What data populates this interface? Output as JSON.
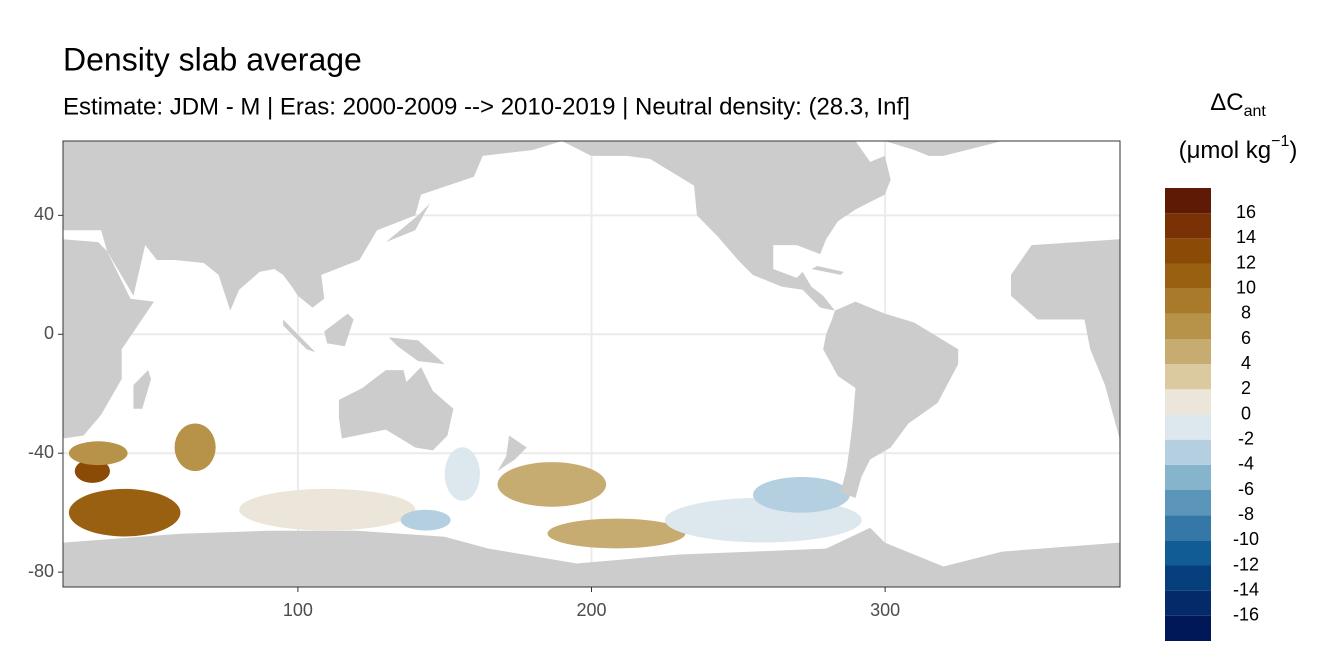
{
  "chart_data": {
    "type": "map",
    "title": "Density slab average",
    "subtitle": "Estimate: JDM - M | Eras: 2000-2009 --> 2010-2019 | Neutral density: (28.3, Inf]",
    "legend_title": {
      "main": "ΔC",
      "sub": "ant",
      "unit": "(μmol kg",
      "unit_sup": "−1",
      "unit_end": ")"
    },
    "xlim": [
      20,
      380
    ],
    "xticks": [
      100,
      200,
      300
    ],
    "ylim": [
      -85,
      65
    ],
    "yticks": [
      -80,
      -40,
      0,
      40
    ],
    "grid": true,
    "land_color": "#cccccc",
    "legend": {
      "limits": [
        -18,
        18
      ],
      "breaks": [
        -16,
        -14,
        -12,
        -10,
        -8,
        -6,
        -4,
        -2,
        0,
        2,
        4,
        6,
        8,
        10,
        12,
        14,
        16
      ],
      "colors": [
        "#011858",
        "#042a6a",
        "#063f7c",
        "#115c94",
        "#3578a7",
        "#5b96ba",
        "#87b4cd",
        "#b3cfe0",
        "#dde8ee",
        "#ece6da",
        "#dbc9a0",
        "#c7ac72",
        "#b79349",
        "#a97a2a",
        "#9a6012",
        "#8c4a07",
        "#7a3105",
        "#5e1a04"
      ]
    },
    "regions": [
      {
        "lon": [
          22,
          60
        ],
        "lat": [
          -52,
          -68
        ],
        "value": 10
      },
      {
        "lon": [
          24,
          36
        ],
        "lat": [
          -42,
          -50
        ],
        "value": 12
      },
      {
        "lon": [
          22,
          42
        ],
        "lat": [
          -36,
          -44
        ],
        "value": 6
      },
      {
        "lon": [
          58,
          72
        ],
        "lat": [
          -30,
          -46
        ],
        "value": 6
      },
      {
        "lon": [
          80,
          140
        ],
        "lat": [
          -52,
          -66
        ],
        "value": 1
      },
      {
        "lon": [
          135,
          152
        ],
        "lat": [
          -59,
          -66
        ],
        "value": -4
      },
      {
        "lon": [
          150,
          162
        ],
        "lat": [
          -38,
          -56
        ],
        "value": -1
      },
      {
        "lon": [
          168,
          205
        ],
        "lat": [
          -43,
          -58
        ],
        "value": 4
      },
      {
        "lon": [
          185,
          232
        ],
        "lat": [
          -62,
          -72
        ],
        "value": 5
      },
      {
        "lon": [
          225,
          292
        ],
        "lat": [
          -55,
          -70
        ],
        "value": -1
      },
      {
        "lon": [
          255,
          288
        ],
        "lat": [
          -48,
          -60
        ],
        "value": -3
      }
    ]
  }
}
